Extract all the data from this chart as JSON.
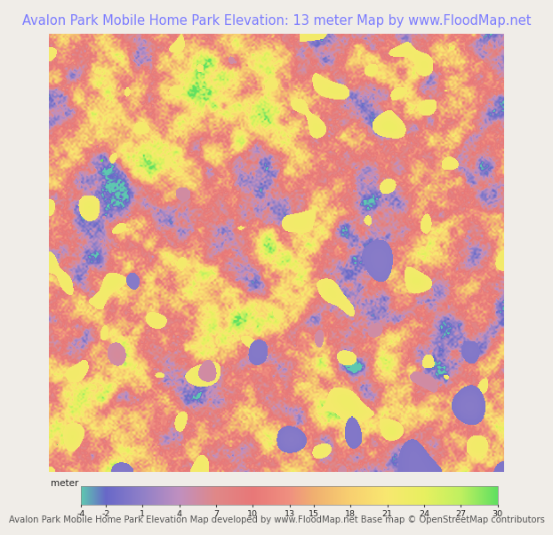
{
  "title": "Avalon Park Mobile Home Park Elevation: 13 meter Map by www.FloodMap.net",
  "title_color": "#7b7bff",
  "title_fontsize": 10.5,
  "colorbar_ticks": [
    -4,
    -2,
    1,
    4,
    7,
    10,
    13,
    15,
    18,
    21,
    24,
    27,
    30
  ],
  "colorbar_label": "meter",
  "footer_text": "Avalon Park Mobile Home Park Elevation Map developed by www.FloodMap.net Base map © OpenStreetMap contributors",
  "footer_fontsize": 7.2,
  "colors_stops": [
    [
      -4,
      "#5ec8b0"
    ],
    [
      -2,
      "#6868c8"
    ],
    [
      1,
      "#9080c8"
    ],
    [
      4,
      "#c090c0"
    ],
    [
      7,
      "#e08888"
    ],
    [
      10,
      "#e87878"
    ],
    [
      13,
      "#f09080"
    ],
    [
      15,
      "#f0b070"
    ],
    [
      18,
      "#f8d070"
    ],
    [
      21,
      "#f8e870"
    ],
    [
      24,
      "#e8f060"
    ],
    [
      27,
      "#c0f060"
    ],
    [
      30,
      "#60e060"
    ]
  ],
  "bg_color": "#f0ede8",
  "vmin": -4,
  "vmax": 30
}
